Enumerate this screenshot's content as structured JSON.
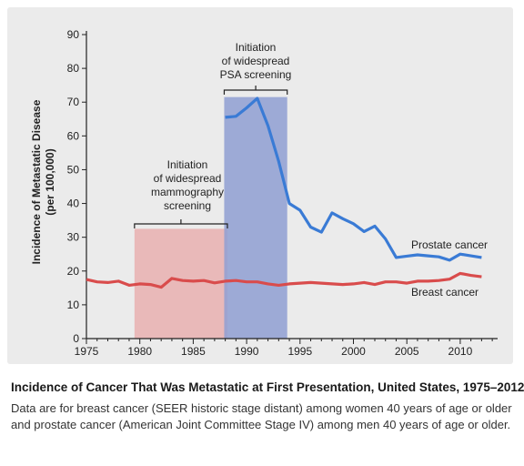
{
  "chart_data": {
    "type": "line",
    "ylabel_line1": "Incidence of Metastatic Disease",
    "ylabel_line2": "(per 100,000)",
    "xlim": [
      1975,
      2013.5
    ],
    "ylim": [
      0,
      90
    ],
    "xticks": [
      "1975",
      "1980",
      "1985",
      "1990",
      "1995",
      "2000",
      "2005",
      "2010"
    ],
    "yticks": [
      "0",
      "10",
      "20",
      "30",
      "40",
      "50",
      "60",
      "70",
      "80",
      "90"
    ],
    "series": [
      {
        "name": "Prostate cancer",
        "color": "#3a7bd5",
        "x": [
          1988,
          1989,
          1990,
          1991,
          1992,
          1993,
          1994,
          1995,
          1996,
          1997,
          1998,
          1999,
          2000,
          2001,
          2002,
          2003,
          2004,
          2005,
          2006,
          2007,
          2008,
          2009,
          2010,
          2011,
          2012
        ],
        "y": [
          65.5,
          65.8,
          68.3,
          71.1,
          63.0,
          52.5,
          40.0,
          38.0,
          33.0,
          31.5,
          37.2,
          35.5,
          34.0,
          31.7,
          33.3,
          29.5,
          24.0,
          24.4,
          24.8,
          24.5,
          24.2,
          23.2,
          25.0,
          24.5,
          24.0
        ]
      },
      {
        "name": "Breast cancer",
        "color": "#d94c4c",
        "x": [
          1975,
          1976,
          1977,
          1978,
          1979,
          1980,
          1981,
          1982,
          1983,
          1984,
          1985,
          1986,
          1987,
          1988,
          1989,
          1990,
          1991,
          1992,
          1993,
          1994,
          1995,
          1996,
          1997,
          1998,
          1999,
          2000,
          2001,
          2002,
          2003,
          2004,
          2005,
          2006,
          2007,
          2008,
          2009,
          2010,
          2011,
          2012
        ],
        "y": [
          17.5,
          16.8,
          16.6,
          17.0,
          15.8,
          16.2,
          16.0,
          15.2,
          17.8,
          17.2,
          17.0,
          17.2,
          16.5,
          17.0,
          17.2,
          16.8,
          16.8,
          16.2,
          15.8,
          16.2,
          16.4,
          16.6,
          16.4,
          16.2,
          16.0,
          16.2,
          16.6,
          16.0,
          16.8,
          16.8,
          16.4,
          17.0,
          17.0,
          17.2,
          17.6,
          19.3,
          18.7,
          18.3
        ]
      }
    ],
    "shaded_regions": [
      {
        "x0": 1979.5,
        "x1": 1988.2,
        "y_top": 32.5,
        "color": "#e8a8a8",
        "label": [
          "Initiation",
          "of widespread",
          "mammography",
          "screening"
        ]
      },
      {
        "x0": 1987.9,
        "x1": 1993.8,
        "y_top": 71.5,
        "color": "#8f9fd2",
        "label": [
          "Initiation",
          "of widespread",
          "PSA screening"
        ]
      }
    ]
  },
  "caption": {
    "title": "Incidence of Cancer That Was Metastatic at First Presentation, United States, 1975–2012.",
    "text": "Data are for breast cancer (SEER historic stage distant) among women 40 years of age or older and prostate cancer (American Joint Committee Stage IV) among men 40 years of age or older."
  }
}
